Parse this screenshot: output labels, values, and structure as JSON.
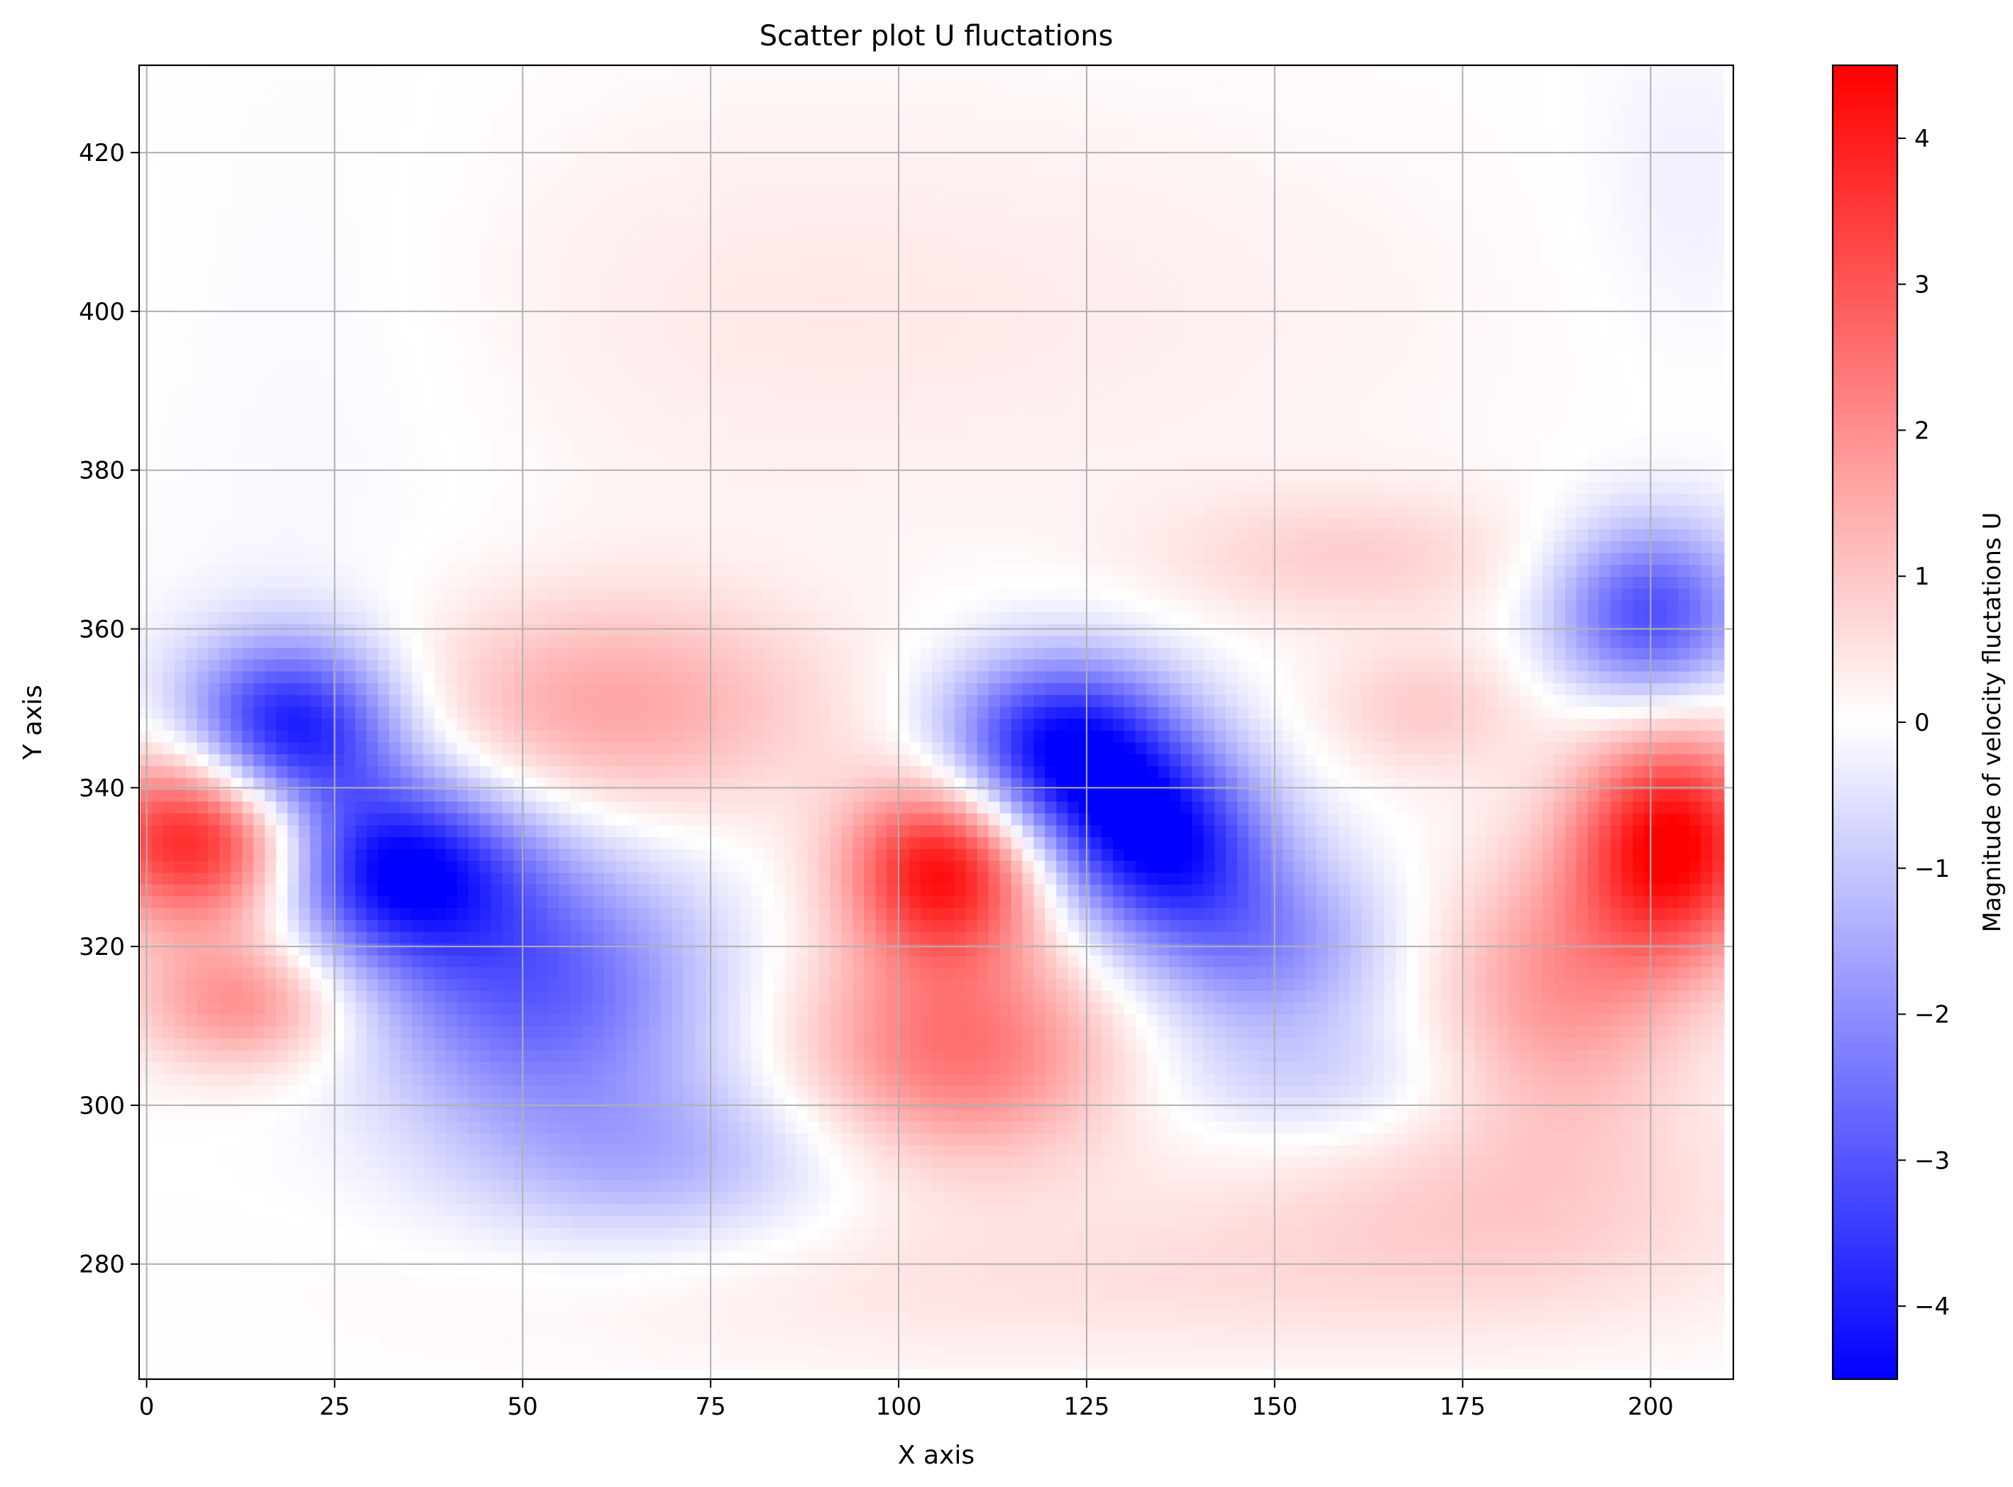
{
  "chart_data": {
    "type": "heatmap",
    "title": "Scatter plot U fluctations",
    "xlabel": "X axis",
    "ylabel": "Y axis",
    "xlim": [
      -1,
      211
    ],
    "ylim": [
      265.5,
      431
    ],
    "x_ticks": [
      0,
      25,
      50,
      75,
      100,
      125,
      150,
      175,
      200
    ],
    "y_ticks": [
      280,
      300,
      320,
      340,
      360,
      380,
      400,
      420
    ],
    "grid": true,
    "data_extent": {
      "x": [
        0,
        209
      ],
      "y": [
        267.5,
        430
      ]
    },
    "colormap": [
      "#0000ff",
      "#ffffff",
      "#ff0000"
    ],
    "colorbar": {
      "label": "Magnitude of velocity fluctations U",
      "range": [
        -4.5,
        4.5
      ],
      "ticks": [
        -4,
        -3,
        -2,
        -1,
        0,
        1,
        2,
        3,
        4
      ],
      "tick_labels": [
        "−4",
        "−3",
        "−2",
        "−1",
        "0",
        "1",
        "2",
        "3",
        "4"
      ]
    },
    "features": [
      {
        "x": 8,
        "y": 334,
        "value": 4.5,
        "sx": 11,
        "sy": 8
      },
      {
        "x": 13,
        "y": 313,
        "value": 2.0,
        "sx": 10,
        "sy": 6
      },
      {
        "x": 19,
        "y": 347,
        "value": -4.5,
        "sx": 10,
        "sy": 8
      },
      {
        "x": 33,
        "y": 330,
        "value": -4.3,
        "sx": 12,
        "sy": 8
      },
      {
        "x": 52,
        "y": 315,
        "value": -2.8,
        "sx": 16,
        "sy": 12
      },
      {
        "x": 68,
        "y": 293,
        "value": -1.3,
        "sx": 18,
        "sy": 8
      },
      {
        "x": 62,
        "y": 350,
        "value": 1.6,
        "sx": 20,
        "sy": 10
      },
      {
        "x": 106,
        "y": 330,
        "value": 4.3,
        "sx": 9,
        "sy": 8
      },
      {
        "x": 108,
        "y": 307,
        "value": 2.5,
        "sx": 15,
        "sy": 10
      },
      {
        "x": 122,
        "y": 345,
        "value": -4.5,
        "sx": 11,
        "sy": 8
      },
      {
        "x": 135,
        "y": 333,
        "value": -4.0,
        "sx": 10,
        "sy": 8
      },
      {
        "x": 148,
        "y": 320,
        "value": -2.0,
        "sx": 12,
        "sy": 8
      },
      {
        "x": 155,
        "y": 303,
        "value": -0.8,
        "sx": 15,
        "sy": 6
      },
      {
        "x": 160,
        "y": 369,
        "value": 0.8,
        "sx": 18,
        "sy": 6
      },
      {
        "x": 170,
        "y": 350,
        "value": 0.9,
        "sx": 10,
        "sy": 6
      },
      {
        "x": 200,
        "y": 362,
        "value": -3.2,
        "sx": 9,
        "sy": 8
      },
      {
        "x": 203,
        "y": 333,
        "value": 4.5,
        "sx": 9,
        "sy": 10
      },
      {
        "x": 188,
        "y": 315,
        "value": 1.8,
        "sx": 12,
        "sy": 12
      },
      {
        "x": 180,
        "y": 288,
        "value": 0.8,
        "sx": 25,
        "sy": 10
      },
      {
        "x": 120,
        "y": 278,
        "value": 0.5,
        "sx": 50,
        "sy": 8
      },
      {
        "x": 90,
        "y": 400,
        "value": 0.4,
        "sx": 60,
        "sy": 20
      },
      {
        "x": 25,
        "y": 395,
        "value": -0.3,
        "sx": 20,
        "sy": 25
      },
      {
        "x": 205,
        "y": 415,
        "value": -0.3,
        "sx": 10,
        "sy": 15
      }
    ]
  }
}
